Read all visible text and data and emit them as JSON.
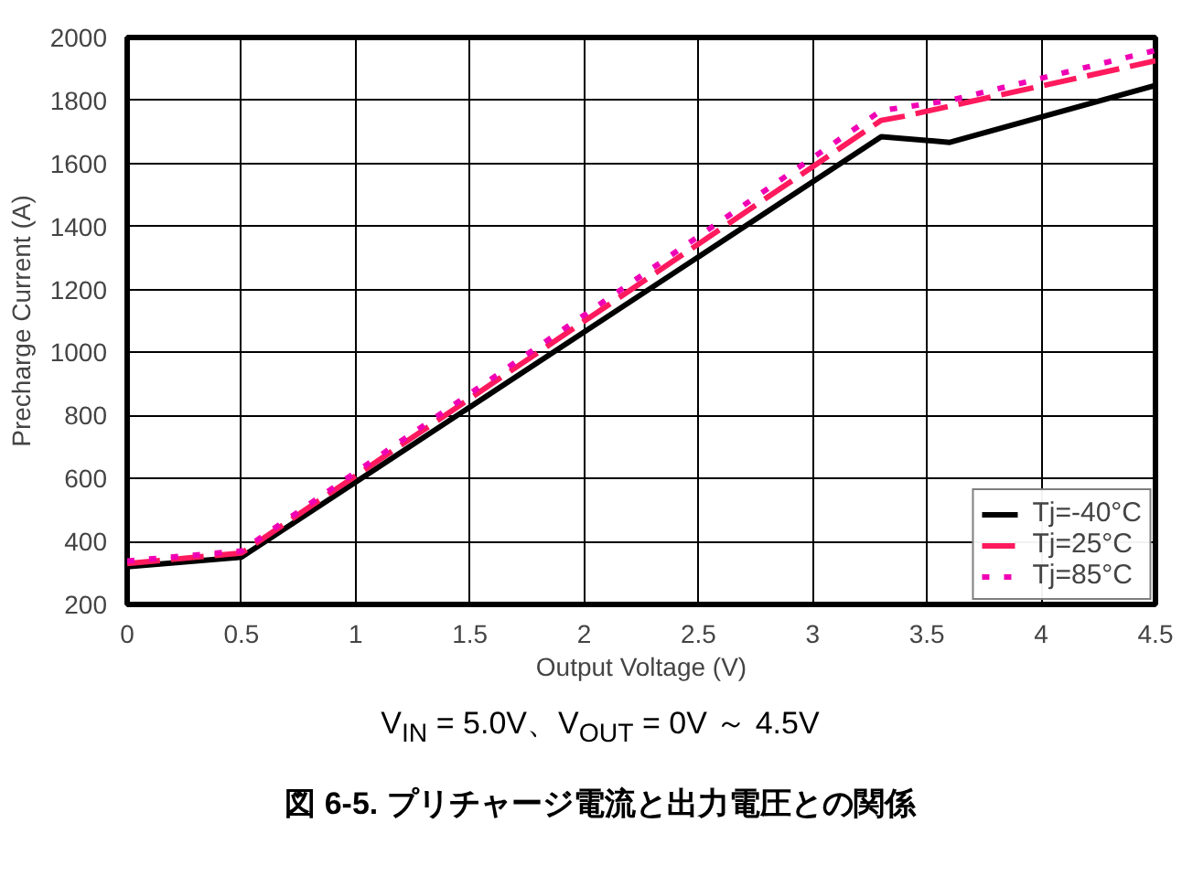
{
  "chart_data": {
    "type": "line",
    "title": "図 6-5. プリチャージ電流と出力電圧との関係",
    "xlabel": "Output Voltage (V)",
    "ylabel": "Precharge Current (A)",
    "annotations": [
      "V$_{IN}$ = 5.0V、V$_{OUT}$ = 0V ～ 4.5V"
    ],
    "x": [
      0,
      0.5,
      3.3,
      3.6,
      4.5
    ],
    "series": [
      {
        "name": "Tj=-40°C",
        "color": "#000000",
        "line_style": "solid",
        "values": [
          320,
          350,
          1685,
          1667,
          1848
        ]
      },
      {
        "name": "Tj=25°C",
        "color": "#ff1a5e",
        "line_style": "dashed",
        "x": [
          0,
          0.5,
          3.3,
          3.4,
          4.5
        ],
        "values": [
          330,
          363,
          1737,
          1750,
          1926
        ]
      },
      {
        "name": "Tj=85°C",
        "color": "#f000b4",
        "line_style": "dotted",
        "values": [
          338,
          370,
          1768,
          1800,
          1959
        ]
      }
    ],
    "xlim": [
      0,
      4.5
    ],
    "xticks": [
      0,
      0.5,
      1,
      1.5,
      2,
      2.5,
      3,
      3.5,
      4,
      4.5
    ],
    "ylim": [
      200,
      2000
    ],
    "yticks": [
      200,
      400,
      600,
      800,
      1000,
      1200,
      1400,
      1600,
      1800,
      2000
    ],
    "grid": true,
    "legend": "bottom right"
  }
}
